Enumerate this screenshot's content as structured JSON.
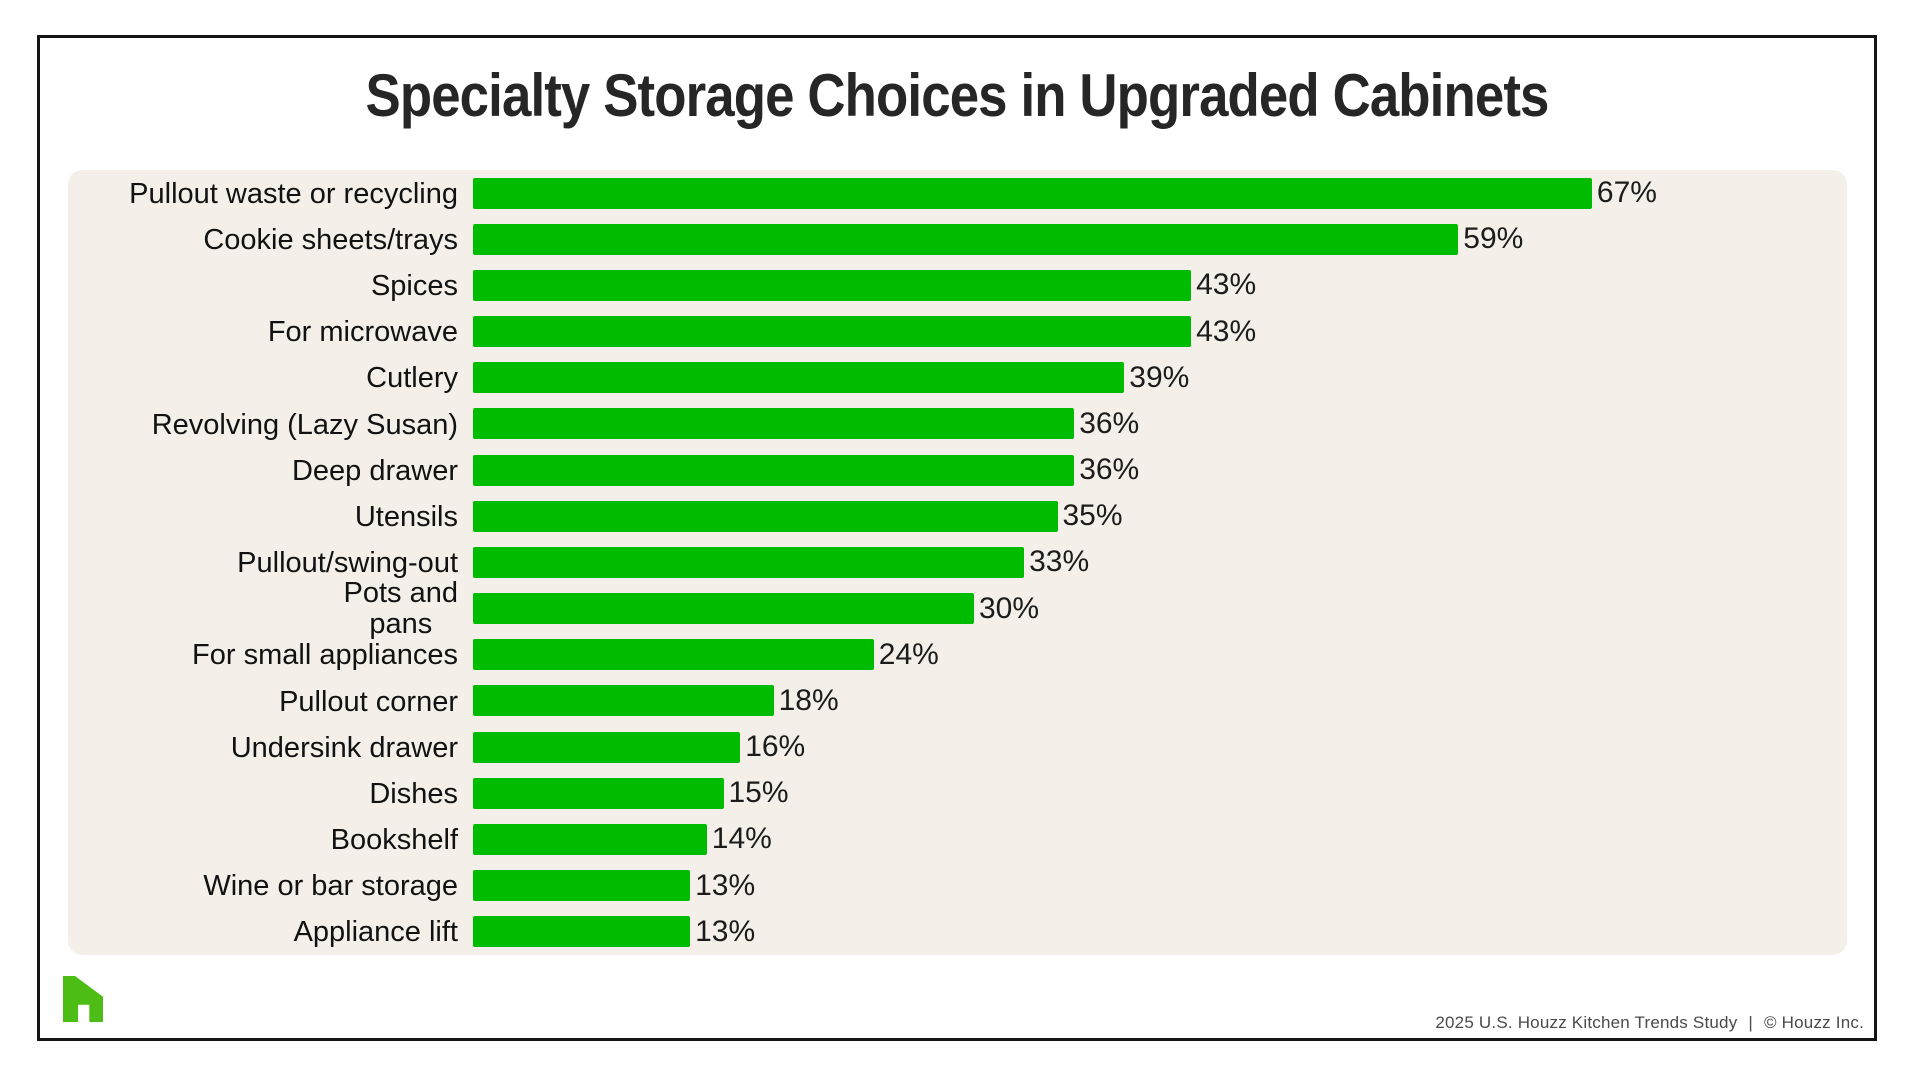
{
  "page": {
    "title": "Specialty Storage Choices in Upgraded Cabinets",
    "footer": {
      "study": "2025 U.S. Houzz Kitchen Trends Study",
      "separator": "|",
      "copyright": "© Houzz Inc."
    },
    "logo": {
      "name": "houzz-logo",
      "color": "#4DBC15"
    }
  },
  "chart_data": {
    "type": "bar",
    "orientation": "horizontal",
    "title": "Specialty Storage Choices in Upgraded Cabinets",
    "categories": [
      "Pullout waste or recycling",
      "Cookie sheets/trays",
      "Spices",
      "For microwave",
      "Cutlery",
      "Revolving (Lazy Susan)",
      "Deep drawer",
      "Utensils",
      "Pullout/swing-out",
      "Pots and\npans",
      "For small appliances",
      "Pullout corner",
      "Undersink drawer",
      "Dishes",
      "Bookshelf",
      "Wine or bar storage",
      "Appliance lift"
    ],
    "values": [
      67,
      59,
      43,
      43,
      39,
      36,
      36,
      35,
      33,
      30,
      24,
      18,
      16,
      15,
      14,
      13,
      13
    ],
    "value_suffix": "%",
    "xlim": [
      0,
      80
    ],
    "grid": false,
    "legend_position": "none",
    "bar_color": "#00BC00",
    "panel_bg": "#F4F0E9",
    "label_color": "#121212",
    "value_color": "#1c1c1c"
  }
}
